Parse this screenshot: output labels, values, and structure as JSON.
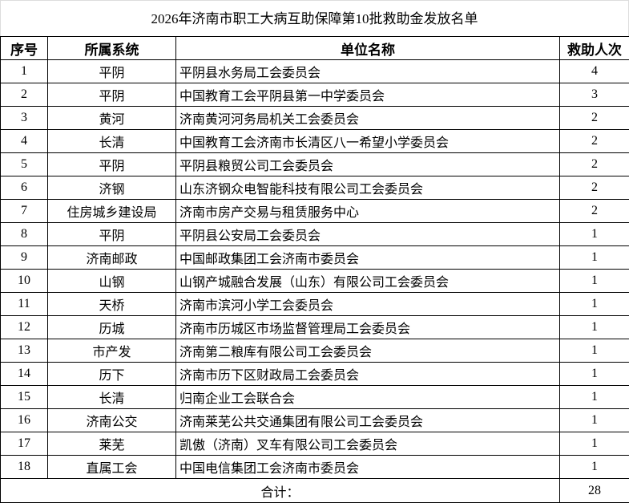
{
  "title": "2026年济南市职工大病互助保障第10批救助金发放名单",
  "headers": [
    "序号",
    "所属系统",
    "单位名称",
    "救助人次"
  ],
  "rows": [
    [
      "1",
      "平阴",
      "平阴县水务局工会委员会",
      "4"
    ],
    [
      "2",
      "平阴",
      "中国教育工会平阴县第一中学委员会",
      "3"
    ],
    [
      "3",
      "黄河",
      "济南黄河河务局机关工会委员会",
      "2"
    ],
    [
      "4",
      "长清",
      "中国教育工会济南市长清区八一希望小学委员会",
      "2"
    ],
    [
      "5",
      "平阴",
      "平阴县粮贸公司工会委员会",
      "2"
    ],
    [
      "6",
      "济钢",
      "山东济钢众电智能科技有限公司工会委员会",
      "2"
    ],
    [
      "7",
      "住房城乡建设局",
      "济南市房产交易与租赁服务中心",
      "2"
    ],
    [
      "8",
      "平阴",
      "平阴县公安局工会委员会",
      "1"
    ],
    [
      "9",
      "济南邮政",
      "中国邮政集团工会济南市委员会",
      "1"
    ],
    [
      "10",
      "山钢",
      "山钢产城融合发展（山东）有限公司工会委员会",
      "1"
    ],
    [
      "11",
      "天桥",
      "济南市滨河小学工会委员会",
      "1"
    ],
    [
      "12",
      "历城",
      "济南市历城区市场监督管理局工会委员会",
      "1"
    ],
    [
      "13",
      "市产发",
      "济南第二粮库有限公司工会委员会",
      "1"
    ],
    [
      "14",
      "历下",
      "济南市历下区财政局工会委员会",
      "1"
    ],
    [
      "15",
      "长清",
      "归南企业工会联合会",
      "1"
    ],
    [
      "16",
      "济南公交",
      "济南莱芜公共交通集团有限公司工会委员会",
      "1"
    ],
    [
      "17",
      "莱芜",
      "凯傲（济南）叉车有限公司工会委员会",
      "1"
    ],
    [
      "18",
      "直属工会",
      "中国电信集团工会济南市委员会",
      "1"
    ]
  ],
  "total": {
    "label": "合计：",
    "value": "28"
  }
}
